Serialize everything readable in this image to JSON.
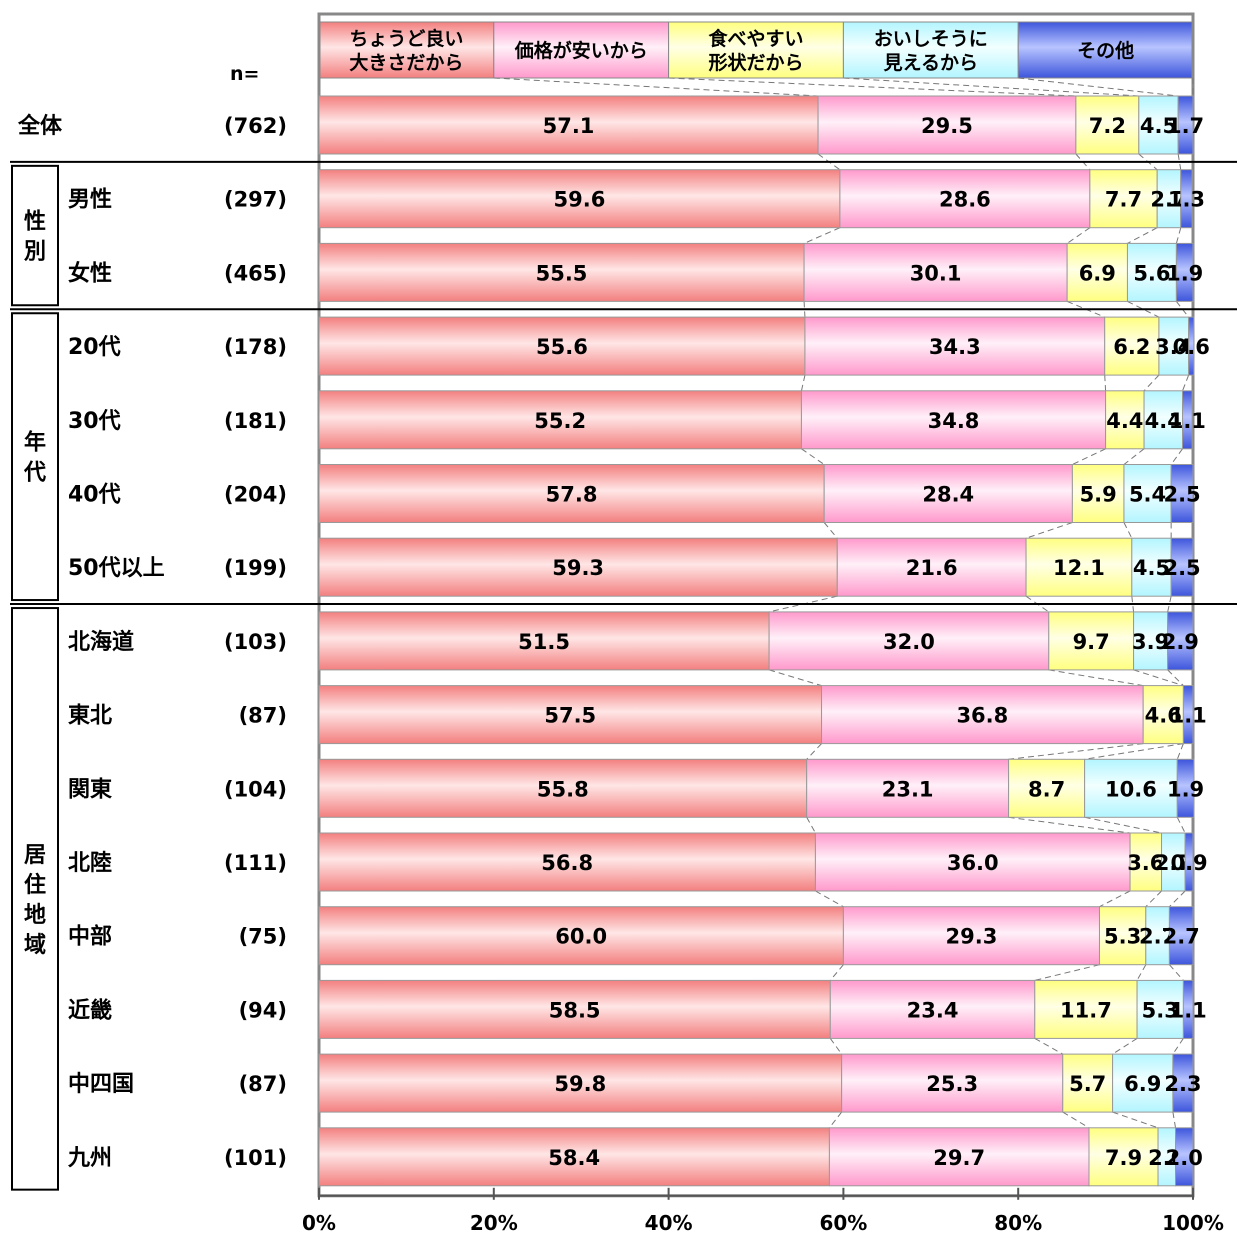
{
  "chart_data": {
    "type": "bar",
    "stacked": true,
    "orientation": "horizontal",
    "n_header": "n=",
    "xlim": [
      0,
      100
    ],
    "x_ticks": [
      "0%",
      "20%",
      "40%",
      "60%",
      "80%",
      "100%"
    ],
    "legend_placement": "top",
    "series": [
      {
        "name": "ちょうど良い\n大きさだから",
        "color": "#f08080"
      },
      {
        "name": "価格が安いから",
        "color": "#ffb3d9"
      },
      {
        "name": "食べやすい\n形状だから",
        "color": "#ffffa6"
      },
      {
        "name": "おいしそうに\n見えるから",
        "color": "#d9ffff"
      },
      {
        "name": "その他",
        "color": "#6b7fe8"
      }
    ],
    "groups": [
      {
        "label": "",
        "rows": [
          0
        ]
      },
      {
        "label": "性別",
        "rows": [
          1,
          2
        ]
      },
      {
        "label": "年代",
        "rows": [
          3,
          4,
          5,
          6
        ]
      },
      {
        "label": "居住地域",
        "rows": [
          7,
          8,
          9,
          10,
          11,
          12,
          13,
          14
        ]
      }
    ],
    "rows": [
      {
        "label": "全体",
        "n": "(762)",
        "values": [
          57.1,
          29.5,
          7.2,
          4.5,
          1.7
        ],
        "labels": [
          "57.1",
          "29.5",
          "7.2",
          "4.5",
          "1.7"
        ]
      },
      {
        "label": "男性",
        "n": "(297)",
        "values": [
          59.6,
          28.6,
          7.7,
          2.7,
          1.3
        ],
        "labels": [
          "59.6",
          "28.6",
          "7.7",
          "2.7",
          "1.3"
        ]
      },
      {
        "label": "女性",
        "n": "(465)",
        "values": [
          55.5,
          30.1,
          6.9,
          5.6,
          1.9
        ],
        "labels": [
          "55.5",
          "30.1",
          "6.9",
          "5.6",
          "1.9"
        ]
      },
      {
        "label": "20代",
        "n": "(178)",
        "values": [
          55.6,
          34.3,
          6.2,
          3.4,
          0.6
        ],
        "labels": [
          "55.6",
          "34.3",
          "6.2",
          "3.4",
          "0.6"
        ]
      },
      {
        "label": "30代",
        "n": "(181)",
        "values": [
          55.2,
          34.8,
          4.4,
          4.4,
          1.1
        ],
        "labels": [
          "55.2",
          "34.8",
          "4.4",
          "4.4",
          "1.1"
        ]
      },
      {
        "label": "40代",
        "n": "(204)",
        "values": [
          57.8,
          28.4,
          5.9,
          5.4,
          2.5
        ],
        "labels": [
          "57.8",
          "28.4",
          "5.9",
          "5.4",
          "2.5"
        ]
      },
      {
        "label": "50代以上",
        "n": "(199)",
        "values": [
          59.3,
          21.6,
          12.1,
          4.5,
          2.5
        ],
        "labels": [
          "59.3",
          "21.6",
          "12.1",
          "4.5",
          "2.5"
        ]
      },
      {
        "label": "北海道",
        "n": "(103)",
        "values": [
          51.5,
          32.0,
          9.7,
          3.9,
          2.9
        ],
        "labels": [
          "51.5",
          "32.0",
          "9.7",
          "3.9",
          "2.9"
        ]
      },
      {
        "label": "東北",
        "n": "(87)",
        "values": [
          57.5,
          36.8,
          4.6,
          0,
          1.1
        ],
        "labels": [
          "57.5",
          "36.8",
          "4.6",
          "",
          "1.1"
        ]
      },
      {
        "label": "関東",
        "n": "(104)",
        "values": [
          55.8,
          23.1,
          8.7,
          10.6,
          1.9
        ],
        "labels": [
          "55.8",
          "23.1",
          "8.7",
          "10.6",
          "1.9"
        ]
      },
      {
        "label": "北陸",
        "n": "(111)",
        "values": [
          56.8,
          36.0,
          3.6,
          2.7,
          0.9
        ],
        "labels": [
          "56.8",
          "36.0",
          "3.6",
          "2.7",
          "0.9"
        ]
      },
      {
        "label": "中部",
        "n": "(75)",
        "values": [
          60.0,
          29.3,
          5.3,
          2.7,
          2.7
        ],
        "labels": [
          "60.0",
          "29.3",
          "5.3",
          "2.7",
          "2.7"
        ]
      },
      {
        "label": "近畿",
        "n": "(94)",
        "values": [
          58.5,
          23.4,
          11.7,
          5.3,
          1.1
        ],
        "labels": [
          "58.5",
          "23.4",
          "11.7",
          "5.3",
          "1.1"
        ]
      },
      {
        "label": "中四国",
        "n": "(87)",
        "values": [
          59.8,
          25.3,
          5.7,
          6.9,
          2.3
        ],
        "labels": [
          "59.8",
          "25.3",
          "5.7",
          "6.9",
          "2.3"
        ]
      },
      {
        "label": "九州",
        "n": "(101)",
        "values": [
          58.4,
          29.7,
          7.9,
          2.0,
          2.0
        ],
        "labels": [
          "58.4",
          "29.7",
          "7.9",
          "2.0",
          "2.0"
        ]
      }
    ]
  }
}
